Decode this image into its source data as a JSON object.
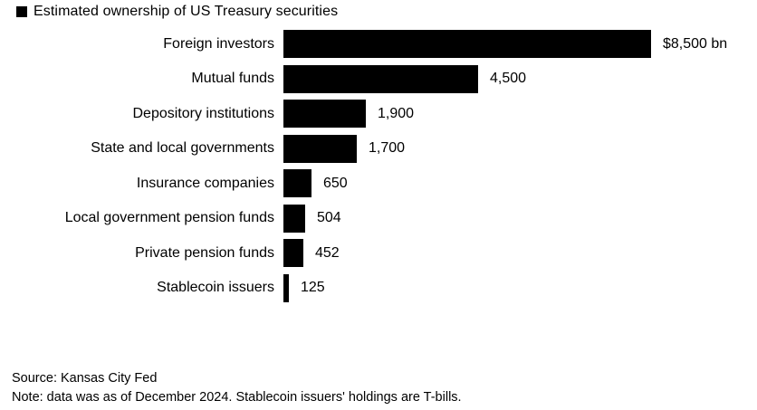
{
  "title": "Estimated ownership of US Treasury securities",
  "footer": {
    "source": "Source: Kansas City Fed",
    "note": "Note: data was as of December 2024. Stablecoin issuers' holdings are T-bills."
  },
  "colors": {
    "bar": "#000000",
    "text": "#000000",
    "background": "#ffffff"
  },
  "chart_data": {
    "type": "bar",
    "orientation": "horizontal",
    "title": "Estimated ownership of US Treasury securities",
    "unit": "$bn",
    "categories": [
      "Foreign investors",
      "Mutual funds",
      "Depository institutions",
      "State and local governments",
      "Insurance companies",
      "Local government pension funds",
      "Private pension funds",
      "Stablecoin issuers"
    ],
    "values": [
      8500,
      4500,
      1900,
      1700,
      650,
      504,
      452,
      125
    ],
    "value_labels": [
      "$8,500 bn",
      "4,500",
      "1,900",
      "1,700",
      "650",
      "504",
      "452",
      "125"
    ],
    "xlim": [
      0,
      8500
    ],
    "grid": false,
    "legend_position": "top-left"
  }
}
